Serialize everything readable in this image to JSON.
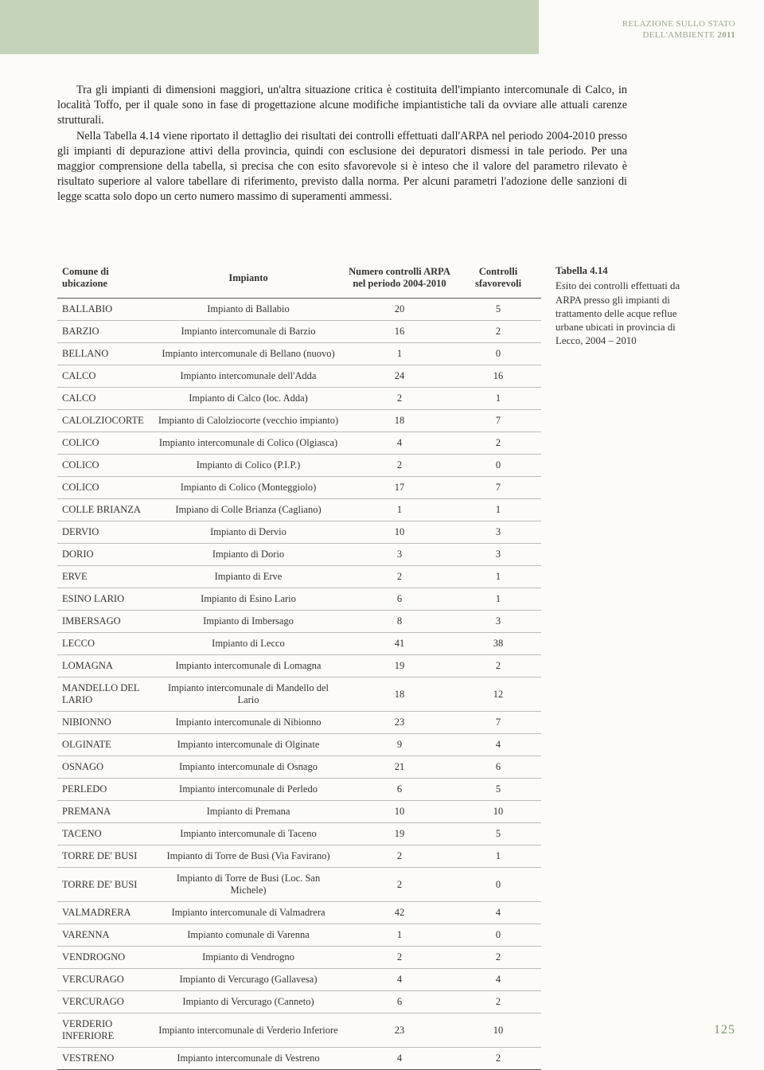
{
  "header": {
    "line1": "RELAZIONE SULLO STATO",
    "line2_a": "DELL'AMBIENTE ",
    "line2_b": "2011"
  },
  "paragraph": "Tra gli impianti di dimensioni maggiori, un'altra situazione critica è costituita dell'impianto intercomunale di Calco, in località Toffo, per il quale sono in fase di progettazione alcune modifiche impiantistiche tali da ovviare alle attuali carenze strutturali.",
  "paragraph2": "Nella Tabella 4.14 viene riportato il dettaglio dei risultati dei controlli effettuati dall'ARPA nel periodo 2004-2010 presso gli impianti di depurazione attivi della provincia, quindi con esclusione dei depuratori dismessi in tale periodo. Per una maggior comprensione della tabella, si precisa che con esito sfavorevole si è inteso che il valore del parametro rilevato è risultato superiore al valore tabellare di riferimento, previsto dalla norma. Per alcuni parametri l'adozione delle sanzioni di legge scatta solo dopo un certo numero massimo di superamenti ammessi.",
  "table": {
    "columns": [
      "Comune di ubicazione",
      "Impianto",
      "Numero controlli ARPA nel periodo 2004-2010",
      "Controlli sfavorevoli"
    ],
    "rows": [
      [
        "BALLABIO",
        "Impianto di Ballabio",
        "20",
        "5"
      ],
      [
        "BARZIO",
        "Impianto intercomunale di Barzio",
        "16",
        "2"
      ],
      [
        "BELLANO",
        "Impianto intercomunale di Bellano (nuovo)",
        "1",
        "0"
      ],
      [
        "CALCO",
        "Impianto intercomunale dell'Adda",
        "24",
        "16"
      ],
      [
        "CALCO",
        "Impianto di Calco (loc. Adda)",
        "2",
        "1"
      ],
      [
        "CALOLZIOCORTE",
        "Impianto di Calolziocorte (vecchio impianto)",
        "18",
        "7"
      ],
      [
        "COLICO",
        "Impianto intercomunale di Colico (Olgiasca)",
        "4",
        "2"
      ],
      [
        "COLICO",
        "Impianto di Colico (P.I.P.)",
        "2",
        "0"
      ],
      [
        "COLICO",
        "Impianto di Colico (Monteggiolo)",
        "17",
        "7"
      ],
      [
        "COLLE BRIANZA",
        "Impiano di Colle Brianza (Cagliano)",
        "1",
        "1"
      ],
      [
        "DERVIO",
        "Impianto di Dervio",
        "10",
        "3"
      ],
      [
        "DORIO",
        "Impianto di Dorio",
        "3",
        "3"
      ],
      [
        "ERVE",
        "Impianto di Erve",
        "2",
        "1"
      ],
      [
        "ESINO LARIO",
        "Impianto di Esino Lario",
        "6",
        "1"
      ],
      [
        "IMBERSAGO",
        "Impianto di Imbersago",
        "8",
        "3"
      ],
      [
        "LECCO",
        "Impianto di Lecco",
        "41",
        "38"
      ],
      [
        "LOMAGNA",
        "Impianto intercomunale di Lomagna",
        "19",
        "2"
      ],
      [
        "MANDELLO DEL LARIO",
        "Impianto intercomunale di Mandello del Lario",
        "18",
        "12"
      ],
      [
        "NIBIONNO",
        "Impianto intercomunale di Nibionno",
        "23",
        "7"
      ],
      [
        "OLGINATE",
        "Impianto intercomunale di Olginate",
        "9",
        "4"
      ],
      [
        "OSNAGO",
        "Impianto intercomunale di Osnago",
        "21",
        "6"
      ],
      [
        "PERLEDO",
        "Impianto intercomunale di Perledo",
        "6",
        "5"
      ],
      [
        "PREMANA",
        "Impianto di Premana",
        "10",
        "10"
      ],
      [
        "TACENO",
        "Impianto intercomunale di Taceno",
        "19",
        "5"
      ],
      [
        "TORRE DE' BUSI",
        "Impianto di Torre de Busi (Via Favirano)",
        "2",
        "1"
      ],
      [
        "TORRE DE' BUSI",
        "Impianto di Torre de Busi (Loc. San Michele)",
        "2",
        "0"
      ],
      [
        "VALMADRERA",
        "Impianto intercomunale di Valmadrera",
        "42",
        "4"
      ],
      [
        "VARENNA",
        "Impianto comunale di Varenna",
        "1",
        "0"
      ],
      [
        "VENDROGNO",
        "Impianto di Vendrogno",
        "2",
        "2"
      ],
      [
        "VERCURAGO",
        "Impianto di Vercurago (Gallavesa)",
        "4",
        "4"
      ],
      [
        "VERCURAGO",
        "Impianto di Vercurago (Canneto)",
        "6",
        "2"
      ],
      [
        "VERDERIO INFERIORE",
        "Impianto intercomunale di Verderio Inferiore",
        "23",
        "10"
      ],
      [
        "VESTRENO",
        "Impianto intercomunale di Vestreno",
        "4",
        "2"
      ]
    ]
  },
  "caption": {
    "title": "Tabella 4.14",
    "text": "Esito dei controlli effettuati da ARPA presso gli impianti di trattamento delle acque reflue urbane ubicati in provincia di Lecco, 2004 – 2010"
  },
  "page_num": "125"
}
